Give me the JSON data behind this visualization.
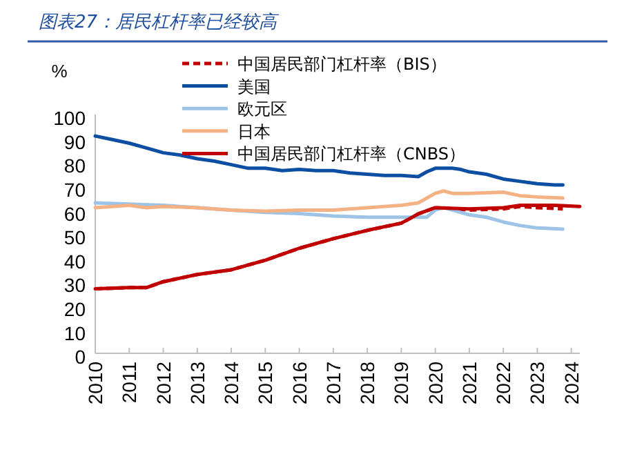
{
  "chart_data": {
    "type": "line",
    "title": "图表27：居民杠杆率已经较高",
    "ylabel": "%",
    "xlim": [
      2010,
      2024.25
    ],
    "xticks": [
      2010,
      2011,
      2012,
      2013,
      2014,
      2015,
      2016,
      2017,
      2018,
      2019,
      2020,
      2021,
      2022,
      2023,
      2024
    ],
    "ylim": [
      0,
      100
    ],
    "yticks": [
      0,
      10,
      20,
      30,
      40,
      50,
      60,
      70,
      80,
      90,
      100
    ],
    "grid": false,
    "legend": "top",
    "marker": "none",
    "series": [
      {
        "name": "中国居民部门杠杆率（BIS）",
        "color": "#c00000",
        "line_style": "dashed",
        "x": [
          2010,
          2011,
          2011.5,
          2012,
          2013,
          2014,
          2015,
          2016,
          2017,
          2018,
          2019,
          2019.5,
          2020,
          2021,
          2022,
          2022.5,
          2023,
          2023.75
        ],
        "values": [
          27,
          27.5,
          27.5,
          30,
          33,
          35,
          39,
          44,
          48,
          51.5,
          54.5,
          58.4,
          61,
          60,
          60.5,
          61.5,
          61,
          60.5
        ]
      },
      {
        "name": "美国",
        "color": "#0b4ea2",
        "line_style": "solid",
        "x": [
          2010,
          2010.5,
          2011,
          2011.5,
          2012,
          2012.5,
          2013,
          2013.5,
          2014,
          2014.5,
          2015,
          2015.5,
          2016,
          2016.5,
          2017,
          2017.5,
          2018,
          2018.5,
          2019,
          2019.5,
          2019.75,
          2020,
          2020.5,
          2020.75,
          2021,
          2021.5,
          2022,
          2022.5,
          2023,
          2023.5,
          2023.75
        ],
        "values": [
          91,
          89.5,
          88,
          86,
          84,
          83,
          81.5,
          80.5,
          79,
          77.5,
          77.5,
          76.5,
          77,
          76.5,
          76.5,
          75.5,
          75,
          74.5,
          74.5,
          74,
          76,
          77.5,
          77.5,
          77,
          76,
          75,
          73,
          72,
          71,
          70.5,
          70.5
        ]
      },
      {
        "name": "欧元区",
        "color": "#9dc3e6",
        "line_style": "solid",
        "x": [
          2010,
          2011,
          2012,
          2013,
          2014,
          2015,
          2016,
          2017,
          2018,
          2019,
          2019.75,
          2020,
          2020.25,
          2021,
          2021.5,
          2022,
          2022.5,
          2023,
          2023.75
        ],
        "values": [
          63,
          62.5,
          62,
          61,
          60,
          59,
          58.5,
          57.5,
          57,
          57,
          57,
          60,
          61,
          58,
          57,
          55,
          53.5,
          52.5,
          52
        ]
      },
      {
        "name": "日本",
        "color": "#f4b183",
        "line_style": "solid",
        "x": [
          2010,
          2011,
          2011.5,
          2012,
          2013,
          2014,
          2015,
          2016,
          2017,
          2018,
          2019,
          2019.5,
          2020,
          2020.25,
          2020.5,
          2021,
          2022,
          2022.5,
          2023,
          2023.75
        ],
        "values": [
          61,
          62,
          61,
          61.5,
          61,
          60,
          59.5,
          60,
          60,
          61,
          62,
          63,
          67,
          68,
          67,
          67,
          67.5,
          66,
          65.5,
          65
        ]
      },
      {
        "name": "中国居民部门杠杆率（CNBS）",
        "color": "#c00000",
        "line_style": "solid",
        "x": [
          2010,
          2011,
          2011.5,
          2012,
          2013,
          2014,
          2015,
          2016,
          2017,
          2018,
          2019,
          2019.5,
          2020,
          2021,
          2022,
          2022.5,
          2023,
          2023.5,
          2024.25
        ],
        "values": [
          27,
          27.5,
          27.5,
          30,
          33,
          35,
          39,
          44,
          48,
          51.5,
          54.5,
          58.4,
          61,
          60.5,
          61,
          62,
          62,
          62,
          61.5
        ]
      }
    ]
  }
}
